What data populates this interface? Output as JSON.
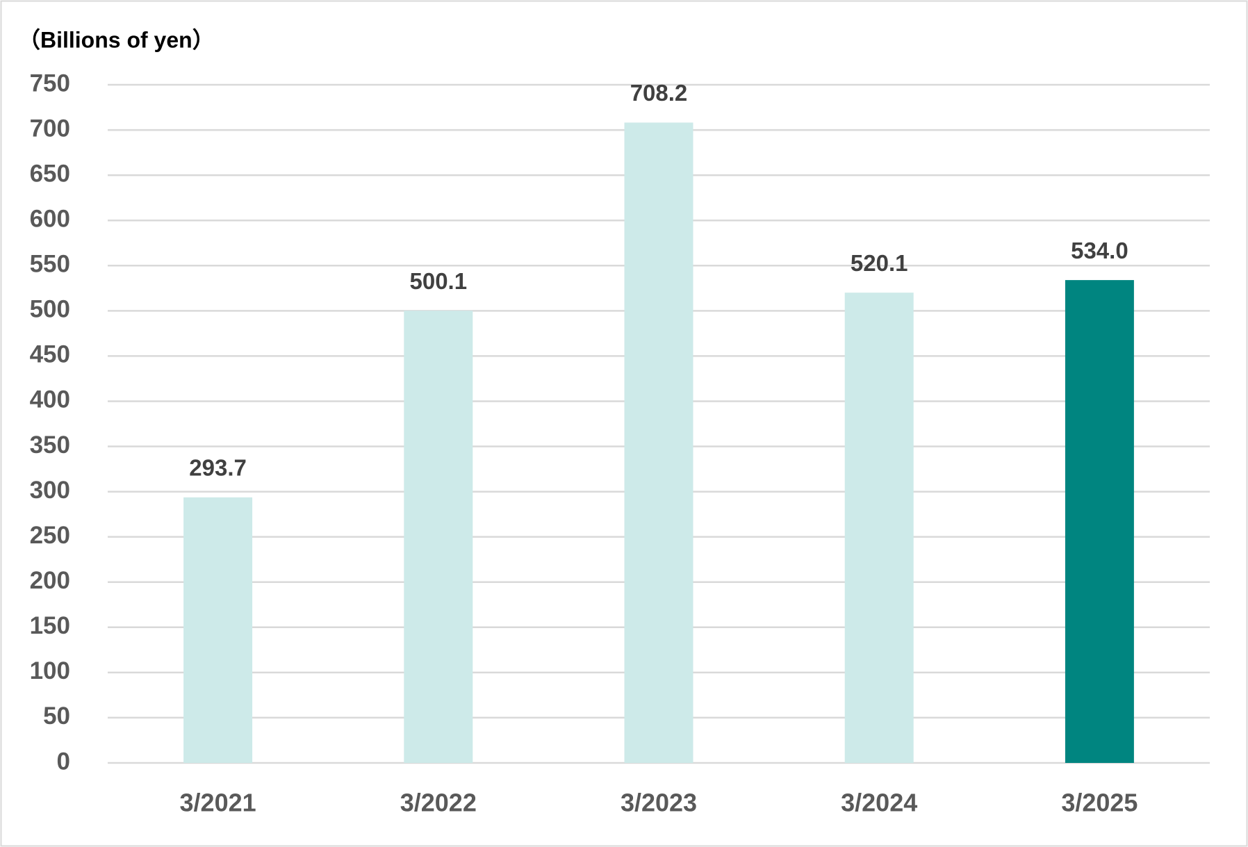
{
  "chart_data": {
    "type": "bar",
    "title": "（Billions of yen）",
    "categories": [
      "3/2021",
      "3/2022",
      "3/2023",
      "3/2024",
      "3/2025"
    ],
    "values": [
      293.7,
      500.1,
      708.2,
      520.1,
      534.0
    ],
    "value_labels": [
      "293.7",
      "500.1",
      "708.2",
      "520.1",
      "534.0"
    ],
    "colors": [
      "#cdeae9",
      "#cdeae9",
      "#cdeae9",
      "#cdeae9",
      "#008580"
    ],
    "ylim": [
      0,
      750
    ],
    "yticks": [
      0,
      50,
      100,
      150,
      200,
      250,
      300,
      350,
      400,
      450,
      500,
      550,
      600,
      650,
      700,
      750
    ],
    "grid": true
  }
}
